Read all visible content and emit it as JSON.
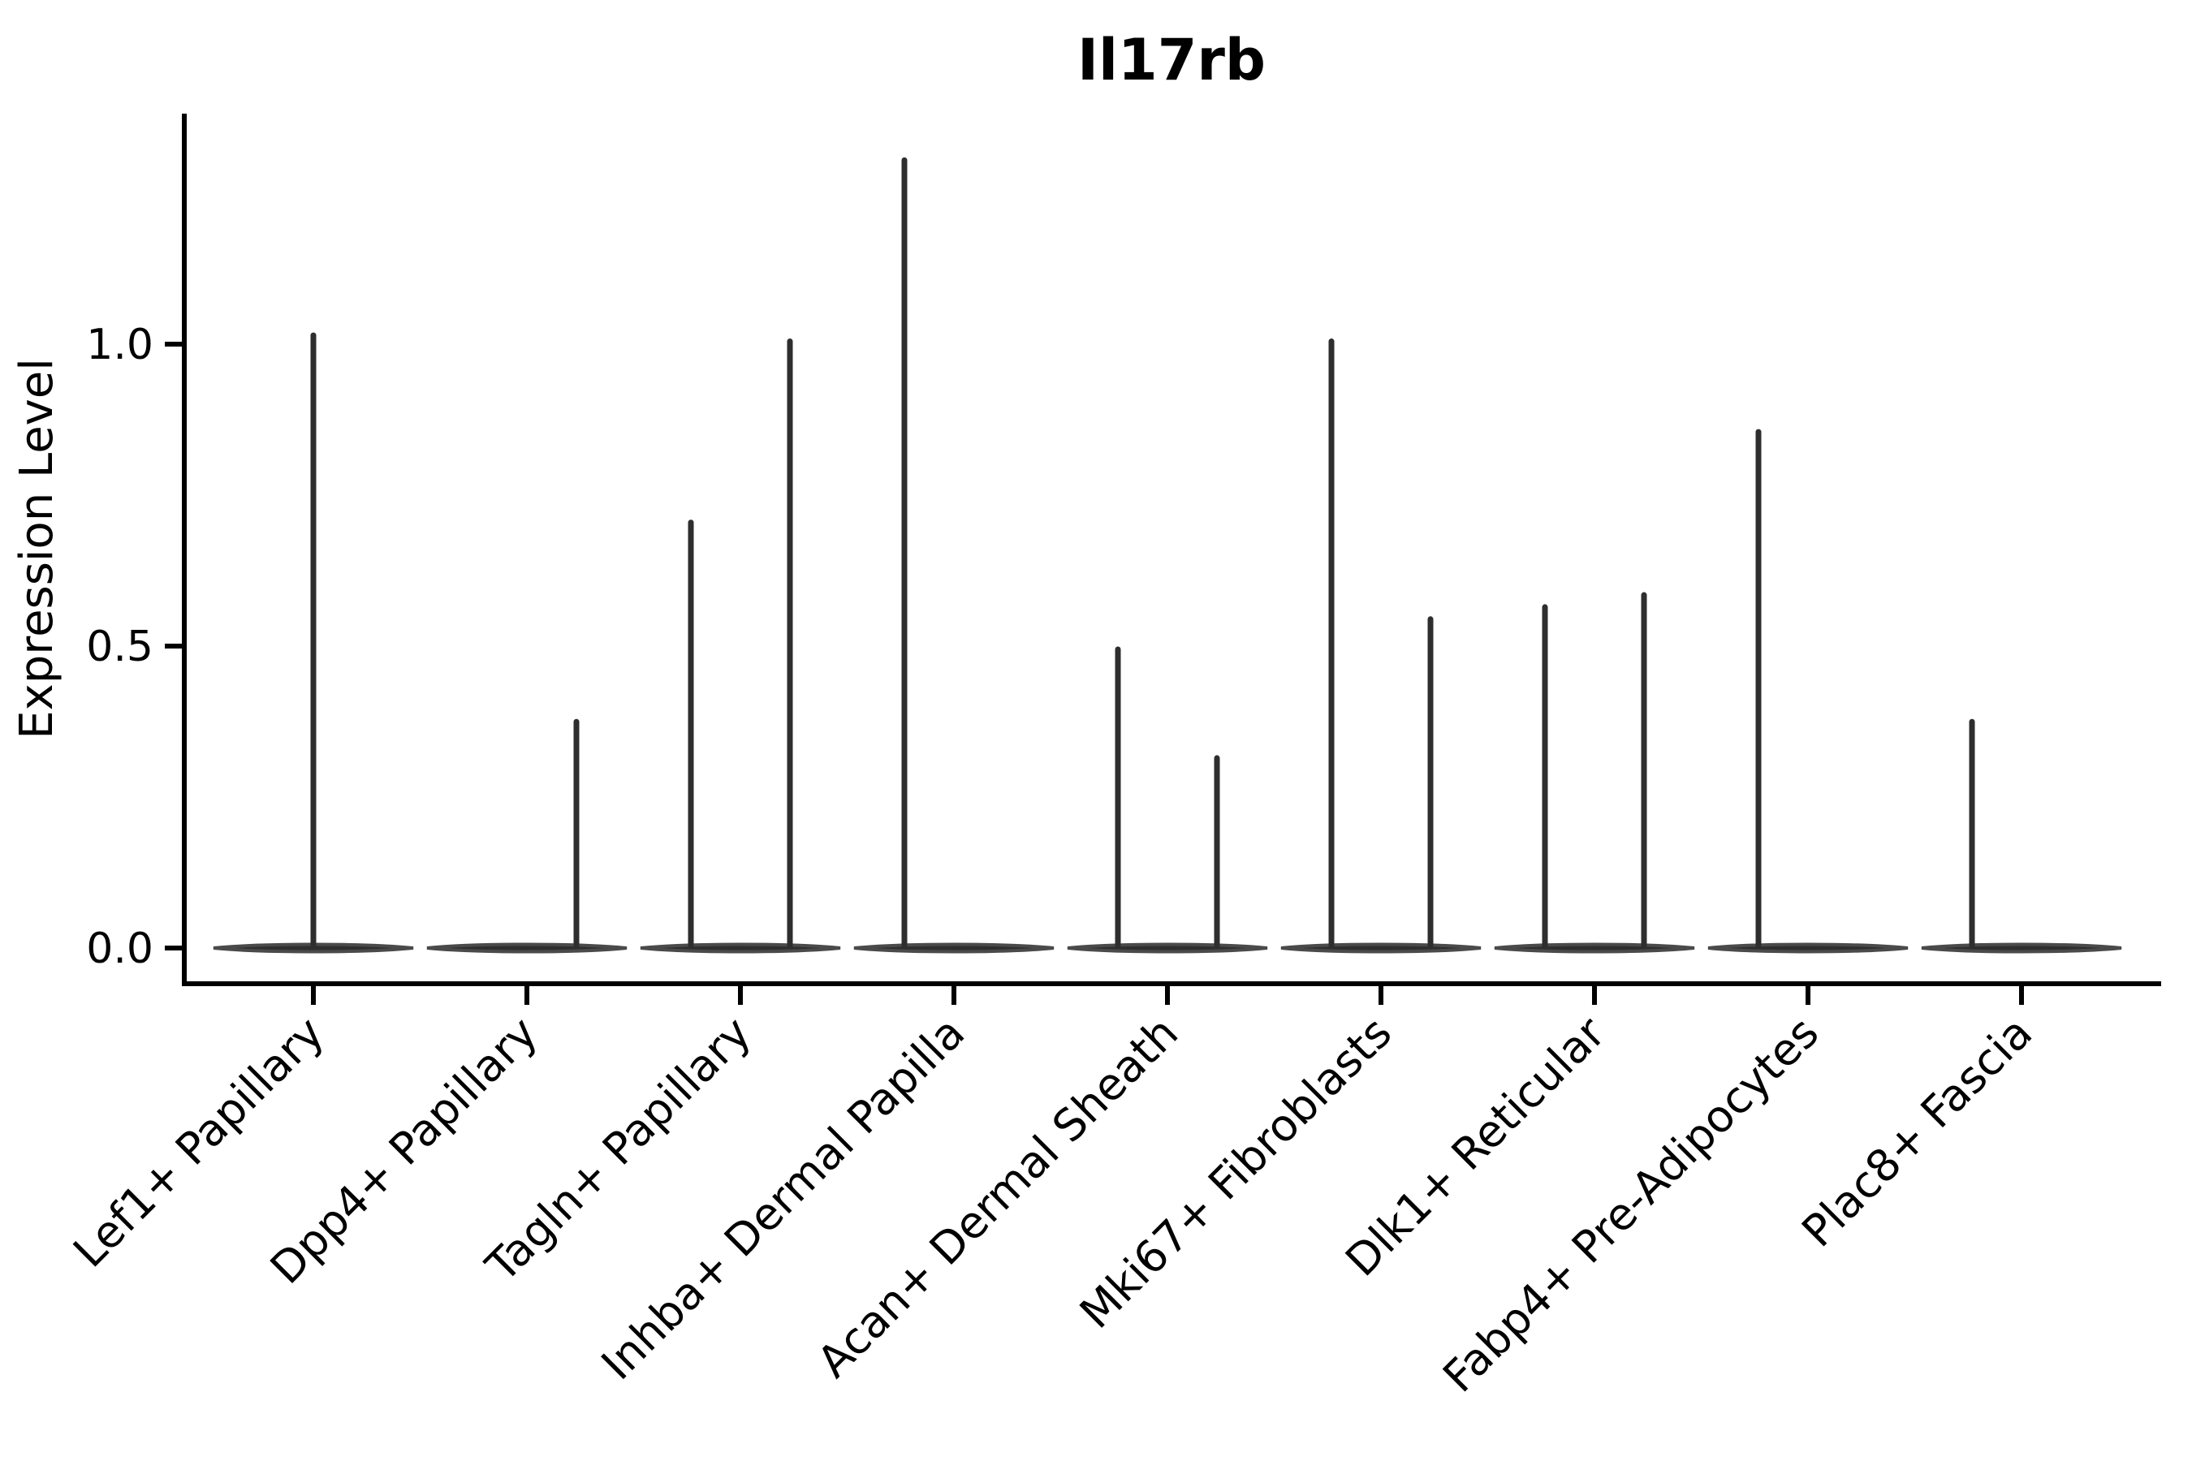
{
  "chart_data": {
    "type": "violin",
    "title": "Il17rb",
    "xlabel": "",
    "ylabel": "Expression Level",
    "ylim": [
      -0.06,
      1.38
    ],
    "grid": false,
    "legend": null,
    "yticks": [
      {
        "value": 0.0,
        "label": "0.0"
      },
      {
        "value": 0.5,
        "label": "0.5"
      },
      {
        "value": 1.0,
        "label": "1.0"
      }
    ],
    "categories": [
      "Lef1+ Papillary",
      "Dpp4+ Papillary",
      "Tagln+ Papillary",
      "Inhba+ Dermal Papilla",
      "Acan+ Dermal Sheath",
      "Mki67+ Fibroblasts",
      "Dlk1+ Reticular",
      "Fabp4+ Pre-Adipocytes",
      "Plac8+ Fascia"
    ],
    "violins": [
      {
        "category_index": 0,
        "category": "Lef1+ Papillary",
        "offset": "center",
        "max_expression": 1.02
      },
      {
        "category_index": 1,
        "category": "Dpp4+ Papillary",
        "offset": "right",
        "max_expression": 0.38
      },
      {
        "category_index": 2,
        "category": "Tagln+ Papillary",
        "offset": "left",
        "max_expression": 0.71
      },
      {
        "category_index": 2,
        "category": "Tagln+ Papillary",
        "offset": "right",
        "max_expression": 1.01
      },
      {
        "category_index": 3,
        "category": "Inhba+ Dermal Papilla",
        "offset": "left",
        "max_expression": 1.31
      },
      {
        "category_index": 4,
        "category": "Acan+ Dermal Sheath",
        "offset": "left",
        "max_expression": 0.5
      },
      {
        "category_index": 4,
        "category": "Acan+ Dermal Sheath",
        "offset": "right",
        "max_expression": 0.32
      },
      {
        "category_index": 5,
        "category": "Mki67+ Fibroblasts",
        "offset": "left",
        "max_expression": 1.01
      },
      {
        "category_index": 5,
        "category": "Mki67+ Fibroblasts",
        "offset": "right",
        "max_expression": 0.55
      },
      {
        "category_index": 6,
        "category": "Dlk1+ Reticular",
        "offset": "left",
        "max_expression": 0.57
      },
      {
        "category_index": 6,
        "category": "Dlk1+ Reticular",
        "offset": "right",
        "max_expression": 0.59
      },
      {
        "category_index": 7,
        "category": "Fabp4+ Pre-Adipocytes",
        "offset": "left",
        "max_expression": 0.86
      },
      {
        "category_index": 8,
        "category": "Plac8+ Fascia",
        "offset": "left",
        "max_expression": 0.38
      }
    ],
    "baseline_value": 0.0,
    "colors": {
      "violin": "#2e2e2e",
      "violin_edge": "#4a4a4a",
      "axis": "#000000",
      "text": "#000000",
      "background": "#ffffff"
    }
  }
}
